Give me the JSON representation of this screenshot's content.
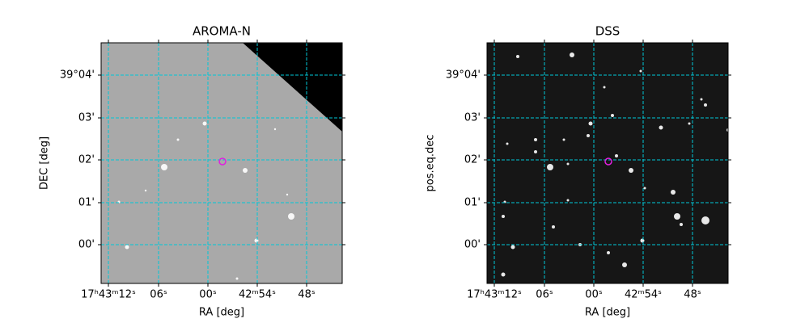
{
  "panels": [
    {
      "title": "AROMA-N",
      "xlabel": "RA [deg]",
      "ylabel": "DEC [deg]",
      "xticks": [
        "17ʰ43ᵐ12ˢ",
        "06ˢ",
        "00ˢ",
        "42ᵐ54ˢ",
        "48ˢ"
      ],
      "yticks": [
        "39°04'",
        "03'",
        "02'",
        "01'",
        "00'"
      ]
    },
    {
      "title": "DSS",
      "xlabel": "RA [deg]",
      "ylabel": "pos.eq.dec",
      "xticks": [
        "17ʰ43ᵐ12ˢ",
        "06ˢ",
        "00ˢ",
        "42ᵐ54ˢ",
        "48ˢ"
      ],
      "yticks": [
        "39°04'",
        "03'",
        "02'",
        "01'",
        "00'"
      ]
    }
  ]
}
